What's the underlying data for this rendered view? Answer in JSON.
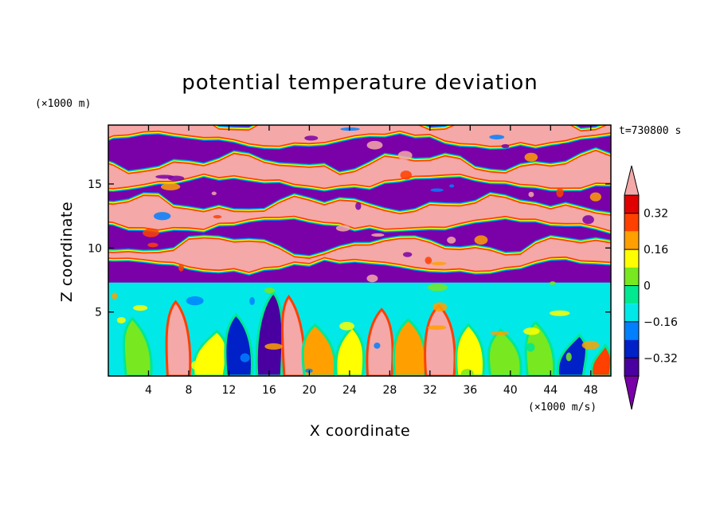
{
  "chart_data": {
    "type": "heatmap",
    "title": "potential temperature deviation",
    "xlabel": "X coordinate",
    "ylabel": "Z coordinate",
    "x_unit": "(×1000 m/s)",
    "y_unit": "(×1000 m)",
    "time_label": "t=730800 s",
    "xlim": [
      0,
      50
    ],
    "ylim": [
      0,
      19.6
    ],
    "x_ticks": [
      4,
      8,
      12,
      16,
      20,
      24,
      28,
      32,
      36,
      40,
      44,
      48
    ],
    "y_ticks": [
      5,
      10,
      15
    ],
    "colorbar": {
      "levels": [
        -0.4,
        -0.32,
        -0.24,
        -0.16,
        -0.08,
        0,
        0.08,
        0.16,
        0.24,
        0.32,
        0.4
      ],
      "labeled_levels": [
        0.32,
        0.16,
        0,
        -0.16,
        -0.32
      ],
      "tick_labels": [
        "0.32",
        "0.16",
        "0",
        "−0.16",
        "−0.32"
      ],
      "extend": "both",
      "colors": [
        "#7a00a8",
        "#4a00a0",
        "#0020c8",
        "#0080ff",
        "#00e8e8",
        "#00e890",
        "#78e820",
        "#ffff00",
        "#ffa000",
        "#ff4000",
        "#e00000",
        "#f4a8a8"
      ]
    },
    "field_description": "layered positive/negative bands above ~7 km, turbulent plumes below"
  }
}
